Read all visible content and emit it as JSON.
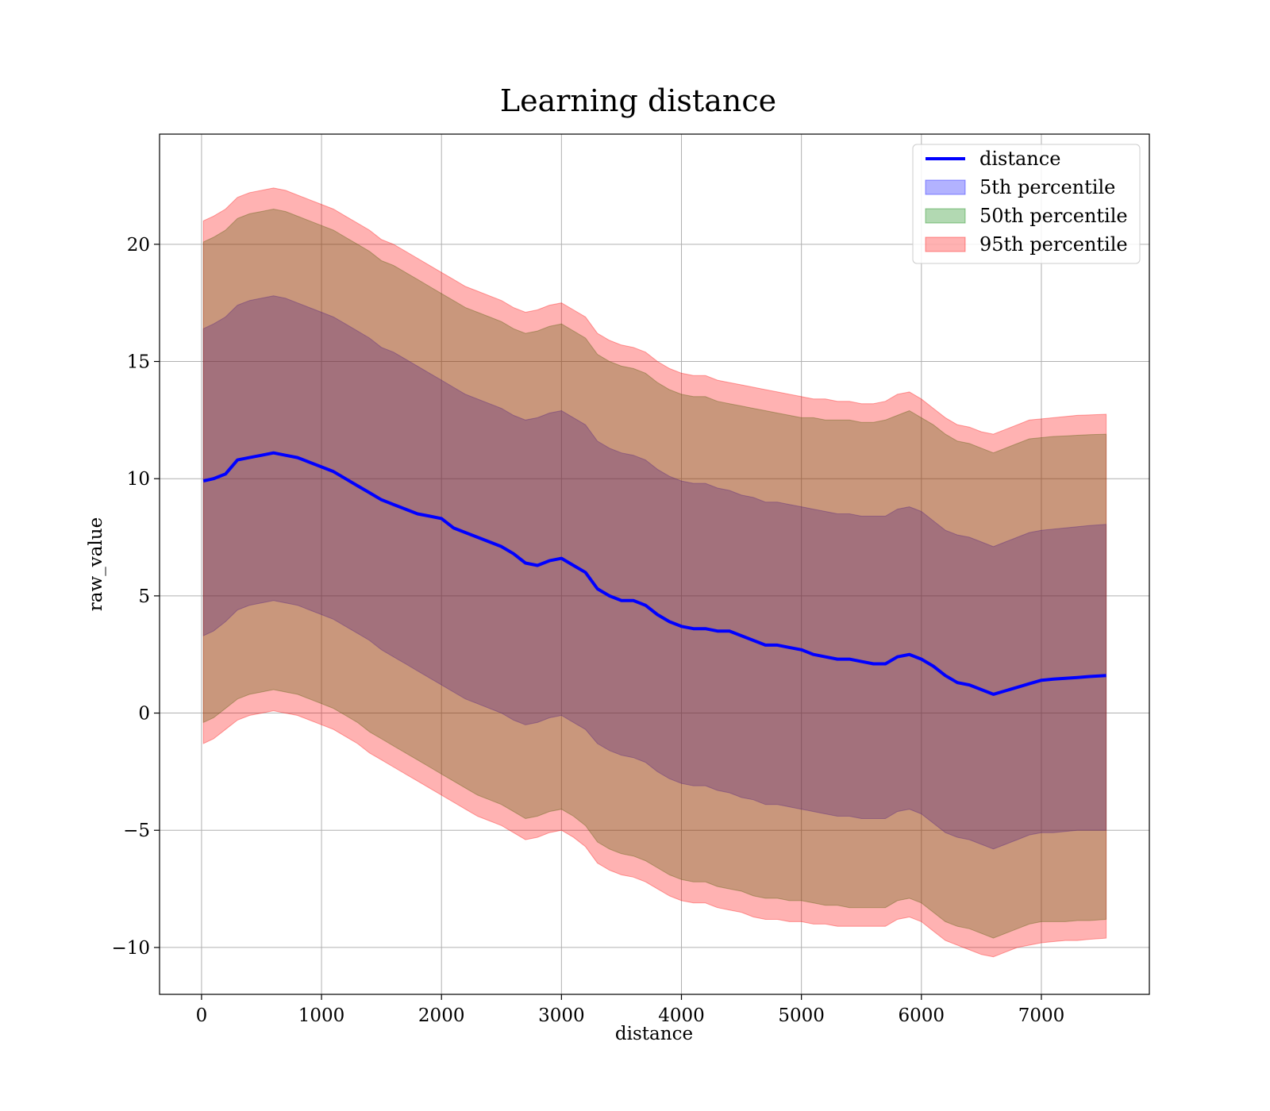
{
  "chart_data": {
    "type": "area",
    "title": "Learning distance",
    "xlabel": "distance",
    "ylabel": "raw_value",
    "xlim": [
      -350,
      7900
    ],
    "ylim": [
      -12,
      24.7
    ],
    "grid": true,
    "legend_position": "top-right",
    "x_ticks": [
      0,
      1000,
      2000,
      3000,
      4000,
      5000,
      6000,
      7000
    ],
    "y_ticks": [
      -10,
      -5,
      0,
      5,
      10,
      15,
      20
    ],
    "x_tick_labels": [
      "0",
      "1000",
      "2000",
      "3000",
      "4000",
      "5000",
      "6000",
      "7000"
    ],
    "y_tick_labels": [
      "−10",
      "−5",
      "0",
      "5",
      "10",
      "15",
      "20"
    ],
    "x": [
      15,
      100,
      200,
      300,
      400,
      500,
      600,
      700,
      800,
      900,
      1000,
      1100,
      1200,
      1300,
      1400,
      1500,
      1600,
      1700,
      1800,
      1900,
      2000,
      2100,
      2200,
      2300,
      2400,
      2500,
      2600,
      2700,
      2800,
      2900,
      3000,
      3100,
      3200,
      3300,
      3400,
      3500,
      3600,
      3700,
      3800,
      3900,
      4000,
      4100,
      4200,
      4300,
      4400,
      4500,
      4600,
      4700,
      4800,
      4900,
      5000,
      5100,
      5200,
      5300,
      5400,
      5500,
      5600,
      5700,
      5800,
      5900,
      6000,
      6100,
      6200,
      6300,
      6400,
      6500,
      6600,
      6700,
      6800,
      6900,
      7000,
      7100,
      7200,
      7300,
      7400,
      7540
    ],
    "series": [
      {
        "name": "distance",
        "kind": "line",
        "color": "#0000ff",
        "values": [
          9.9,
          10.0,
          10.2,
          10.8,
          10.9,
          11.0,
          11.1,
          11.0,
          10.9,
          10.7,
          10.5,
          10.3,
          10.0,
          9.7,
          9.4,
          9.1,
          8.9,
          8.7,
          8.5,
          8.4,
          8.3,
          7.9,
          7.7,
          7.5,
          7.3,
          7.1,
          6.8,
          6.4,
          6.3,
          6.5,
          6.6,
          6.3,
          6.0,
          5.3,
          5.0,
          4.8,
          4.8,
          4.6,
          4.2,
          3.9,
          3.7,
          3.6,
          3.6,
          3.5,
          3.5,
          3.3,
          3.1,
          2.9,
          2.9,
          2.8,
          2.7,
          2.5,
          2.4,
          2.3,
          2.3,
          2.2,
          2.1,
          2.1,
          2.4,
          2.5,
          2.3,
          2.0,
          1.6,
          1.3,
          1.2,
          1.0,
          0.8,
          0.95,
          1.1,
          1.25,
          1.4,
          1.45,
          1.48,
          1.52,
          1.56,
          1.6
        ]
      },
      {
        "name": "5th percentile",
        "kind": "band",
        "color": "#0000ff",
        "opacity": 0.3,
        "lower": [
          3.3,
          3.5,
          3.9,
          4.4,
          4.6,
          4.7,
          4.8,
          4.7,
          4.6,
          4.4,
          4.2,
          4.0,
          3.7,
          3.4,
          3.1,
          2.7,
          2.4,
          2.1,
          1.8,
          1.5,
          1.2,
          0.9,
          0.6,
          0.4,
          0.2,
          0.0,
          -0.3,
          -0.5,
          -0.4,
          -0.2,
          -0.1,
          -0.4,
          -0.7,
          -1.3,
          -1.6,
          -1.8,
          -1.9,
          -2.1,
          -2.5,
          -2.8,
          -3.0,
          -3.1,
          -3.1,
          -3.3,
          -3.4,
          -3.6,
          -3.7,
          -3.9,
          -3.9,
          -4.0,
          -4.1,
          -4.2,
          -4.3,
          -4.4,
          -4.4,
          -4.5,
          -4.5,
          -4.5,
          -4.2,
          -4.1,
          -4.3,
          -4.7,
          -5.1,
          -5.3,
          -5.4,
          -5.6,
          -5.8,
          -5.6,
          -5.4,
          -5.2,
          -5.1,
          -5.1,
          -5.05,
          -5.0,
          -5.0,
          -5.0
        ],
        "upper": [
          16.4,
          16.6,
          16.9,
          17.4,
          17.6,
          17.7,
          17.8,
          17.7,
          17.5,
          17.3,
          17.1,
          16.9,
          16.6,
          16.3,
          16.0,
          15.6,
          15.4,
          15.1,
          14.8,
          14.5,
          14.2,
          13.9,
          13.6,
          13.4,
          13.2,
          13.0,
          12.7,
          12.5,
          12.6,
          12.8,
          12.9,
          12.6,
          12.3,
          11.6,
          11.3,
          11.1,
          11.0,
          10.8,
          10.4,
          10.1,
          9.9,
          9.8,
          9.8,
          9.6,
          9.5,
          9.3,
          9.2,
          9.0,
          9.0,
          8.9,
          8.8,
          8.7,
          8.6,
          8.5,
          8.5,
          8.4,
          8.4,
          8.4,
          8.7,
          8.8,
          8.6,
          8.2,
          7.8,
          7.6,
          7.5,
          7.3,
          7.1,
          7.3,
          7.5,
          7.7,
          7.8,
          7.85,
          7.9,
          7.95,
          8.0,
          8.05
        ]
      },
      {
        "name": "50th percentile",
        "kind": "band",
        "color": "#008000",
        "opacity": 0.3,
        "lower": [
          -0.4,
          -0.2,
          0.2,
          0.6,
          0.8,
          0.9,
          1.0,
          0.9,
          0.8,
          0.6,
          0.4,
          0.2,
          -0.1,
          -0.4,
          -0.8,
          -1.1,
          -1.4,
          -1.7,
          -2.0,
          -2.3,
          -2.6,
          -2.9,
          -3.2,
          -3.5,
          -3.7,
          -3.9,
          -4.2,
          -4.5,
          -4.4,
          -4.2,
          -4.1,
          -4.4,
          -4.8,
          -5.5,
          -5.8,
          -6.0,
          -6.1,
          -6.3,
          -6.6,
          -6.9,
          -7.1,
          -7.2,
          -7.2,
          -7.4,
          -7.5,
          -7.6,
          -7.8,
          -7.9,
          -7.9,
          -8.0,
          -8.0,
          -8.1,
          -8.2,
          -8.2,
          -8.3,
          -8.3,
          -8.3,
          -8.3,
          -8.0,
          -7.9,
          -8.1,
          -8.5,
          -8.9,
          -9.1,
          -9.2,
          -9.4,
          -9.6,
          -9.4,
          -9.2,
          -9.0,
          -8.9,
          -8.9,
          -8.9,
          -8.85,
          -8.85,
          -8.8
        ],
        "upper": [
          20.1,
          20.3,
          20.6,
          21.1,
          21.3,
          21.4,
          21.5,
          21.4,
          21.2,
          21.0,
          20.8,
          20.6,
          20.3,
          20.0,
          19.7,
          19.3,
          19.1,
          18.8,
          18.5,
          18.2,
          17.9,
          17.6,
          17.3,
          17.1,
          16.9,
          16.7,
          16.4,
          16.2,
          16.3,
          16.5,
          16.6,
          16.3,
          16.0,
          15.3,
          15.0,
          14.8,
          14.7,
          14.5,
          14.1,
          13.8,
          13.6,
          13.5,
          13.5,
          13.3,
          13.2,
          13.1,
          13.0,
          12.9,
          12.8,
          12.7,
          12.6,
          12.6,
          12.5,
          12.5,
          12.5,
          12.4,
          12.4,
          12.5,
          12.7,
          12.9,
          12.6,
          12.3,
          11.9,
          11.6,
          11.5,
          11.3,
          11.1,
          11.3,
          11.5,
          11.7,
          11.75,
          11.8,
          11.82,
          11.85,
          11.88,
          11.9
        ]
      },
      {
        "name": "95th percentile",
        "kind": "band",
        "color": "#ff0000",
        "opacity": 0.3,
        "lower": [
          -1.3,
          -1.1,
          -0.7,
          -0.3,
          -0.1,
          0.0,
          0.1,
          0.0,
          -0.1,
          -0.3,
          -0.5,
          -0.7,
          -1.0,
          -1.3,
          -1.7,
          -2.0,
          -2.3,
          -2.6,
          -2.9,
          -3.2,
          -3.5,
          -3.8,
          -4.1,
          -4.4,
          -4.6,
          -4.8,
          -5.1,
          -5.4,
          -5.3,
          -5.1,
          -5.0,
          -5.3,
          -5.7,
          -6.4,
          -6.7,
          -6.9,
          -7.0,
          -7.2,
          -7.5,
          -7.8,
          -8.0,
          -8.1,
          -8.1,
          -8.3,
          -8.4,
          -8.5,
          -8.7,
          -8.8,
          -8.8,
          -8.9,
          -8.9,
          -9.0,
          -9.0,
          -9.1,
          -9.1,
          -9.1,
          -9.1,
          -9.1,
          -8.8,
          -8.7,
          -8.9,
          -9.3,
          -9.7,
          -9.9,
          -10.1,
          -10.3,
          -10.4,
          -10.2,
          -10.0,
          -9.9,
          -9.8,
          -9.75,
          -9.7,
          -9.7,
          -9.65,
          -9.6
        ],
        "upper": [
          21.0,
          21.2,
          21.5,
          22.0,
          22.2,
          22.3,
          22.4,
          22.3,
          22.1,
          21.9,
          21.7,
          21.5,
          21.2,
          20.9,
          20.6,
          20.2,
          20.0,
          19.7,
          19.4,
          19.1,
          18.8,
          18.5,
          18.2,
          18.0,
          17.8,
          17.6,
          17.3,
          17.1,
          17.2,
          17.4,
          17.5,
          17.2,
          16.9,
          16.2,
          15.9,
          15.7,
          15.6,
          15.4,
          15.0,
          14.7,
          14.5,
          14.4,
          14.4,
          14.2,
          14.1,
          14.0,
          13.9,
          13.8,
          13.7,
          13.6,
          13.5,
          13.4,
          13.4,
          13.3,
          13.3,
          13.2,
          13.2,
          13.3,
          13.6,
          13.7,
          13.4,
          13.0,
          12.6,
          12.3,
          12.2,
          12.0,
          11.9,
          12.1,
          12.3,
          12.5,
          12.55,
          12.6,
          12.65,
          12.7,
          12.72,
          12.75
        ]
      }
    ]
  }
}
